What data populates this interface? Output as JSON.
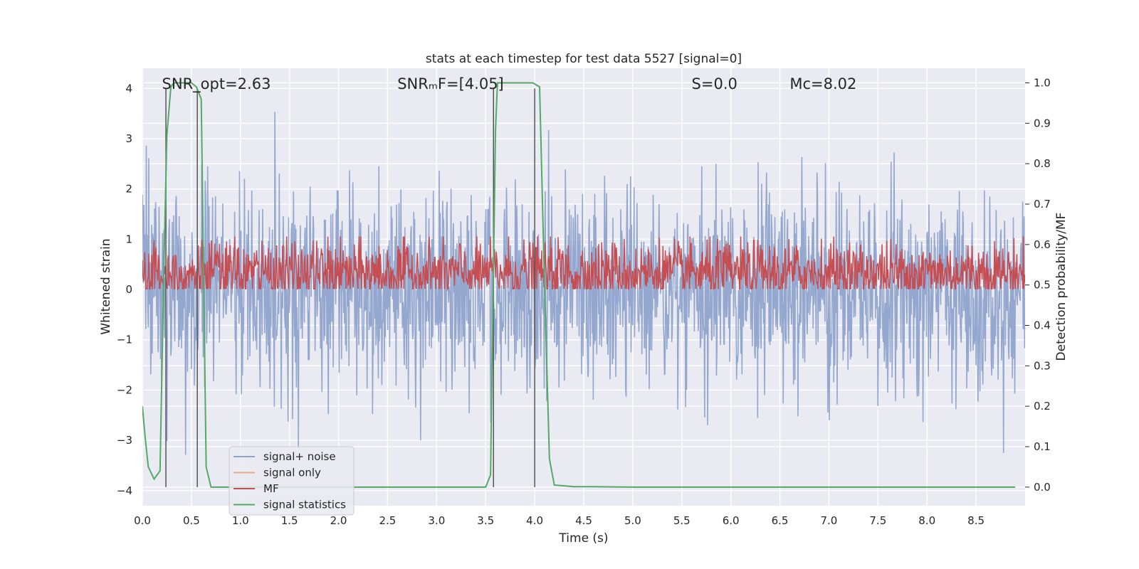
{
  "chart_data": {
    "type": "line",
    "title": "stats at each timestep for test data 5527 [signal=0]",
    "xlabel": "Time (s)",
    "ylabel": "Whitened strain",
    "y2label": "Detection probability/MF",
    "xlim": [
      0.0,
      9.0
    ],
    "ylim": [
      -4.3,
      4.4
    ],
    "y2lim": [
      -0.046,
      1.036
    ],
    "xticks": [
      "0.0",
      "0.5",
      "1.0",
      "1.5",
      "2.0",
      "2.5",
      "3.0",
      "3.5",
      "4.0",
      "4.5",
      "5.0",
      "5.5",
      "6.0",
      "6.5",
      "7.0",
      "7.5",
      "8.0",
      "8.5"
    ],
    "yticks": [
      "4",
      "3",
      "2",
      "1",
      "0",
      "−1",
      "−2",
      "−3",
      "−4"
    ],
    "y2ticks": [
      "1.0",
      "0.9",
      "0.8",
      "0.7",
      "0.6",
      "0.5",
      "0.4",
      "0.3",
      "0.2",
      "0.1",
      "0.0"
    ],
    "grid": true,
    "legend_location": "lower-left",
    "colors": {
      "signal_noise": "#8fa3cc",
      "signal_only": "#e8a98c",
      "mf": "#c44e52",
      "signal_statistics": "#55a868",
      "markers": "#555555",
      "plot_bg": "#eaeaf2",
      "grid": "#ffffff"
    },
    "annotations": [
      {
        "text": "SNR_opt=2.63",
        "x": 0.2
      },
      {
        "text": "SNRₘF=[4.05]",
        "x": 2.6
      },
      {
        "text": "S=0.0",
        "x": 5.6
      },
      {
        "text": "Mᴄ=8.02",
        "x": 6.6
      }
    ],
    "series": [
      {
        "name": "signal+ noise",
        "axis": "left",
        "style": "noise",
        "mean": 0.0,
        "std": 1.0
      },
      {
        "name": "signal only",
        "axis": "left",
        "style": "flat",
        "values": []
      },
      {
        "name": "MF",
        "axis": "right",
        "style": "noise",
        "mean": 0.53,
        "std": 0.04
      },
      {
        "name": "signal statistics",
        "axis": "right",
        "style": "line",
        "x": [
          0.0,
          0.03,
          0.06,
          0.12,
          0.18,
          0.22,
          0.25,
          0.29,
          0.32,
          0.4,
          0.5,
          0.55,
          0.6,
          0.65,
          0.7,
          1.0,
          2.0,
          3.0,
          3.5,
          3.55,
          3.6,
          3.62,
          3.7,
          3.9,
          3.98,
          4.05,
          4.1,
          4.15,
          4.2,
          4.4,
          4.6,
          5.0,
          6.0,
          7.0,
          8.0,
          8.9
        ],
        "y": [
          0.2,
          0.12,
          0.05,
          0.02,
          0.04,
          0.55,
          0.87,
          0.99,
          1.0,
          1.0,
          1.0,
          0.99,
          0.96,
          0.05,
          0.0,
          0.0,
          0.0,
          0.0,
          0.0,
          0.03,
          0.88,
          1.0,
          1.0,
          1.0,
          1.0,
          0.99,
          0.5,
          0.07,
          0.005,
          0.001,
          0.001,
          0.0,
          0.0,
          0.0,
          0.0,
          0.0
        ]
      }
    ],
    "vertical_markers": [
      0.24,
      0.56,
      3.58,
      4.0
    ]
  }
}
